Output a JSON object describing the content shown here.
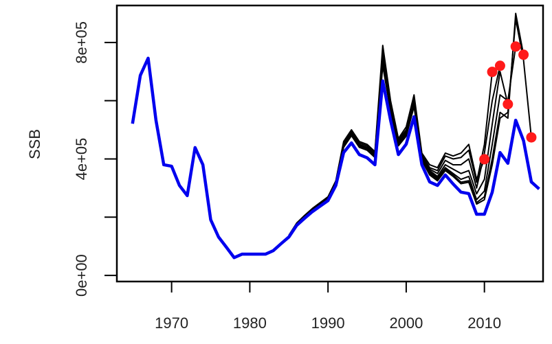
{
  "chart_data": {
    "type": "line",
    "y_label": "SSB",
    "x": [
      1965,
      1966,
      1967,
      1968,
      1969,
      1970,
      1971,
      1972,
      1973,
      1974,
      1975,
      1976,
      1977,
      1978,
      1979,
      1980,
      1981,
      1982,
      1983,
      1984,
      1985,
      1986,
      1987,
      1988,
      1989,
      1990,
      1991,
      1992,
      1993,
      1994,
      1995,
      1996,
      1997,
      1998,
      1999,
      2000,
      2001,
      2002,
      2003,
      2004,
      2005,
      2006,
      2007,
      2008,
      2009,
      2010,
      2011,
      2012,
      2013,
      2014,
      2015,
      2016,
      2017
    ],
    "series": [
      {
        "color": "#000000",
        "values": [
          null,
          null,
          null,
          null,
          null,
          null,
          null,
          null,
          null,
          null,
          null,
          null,
          null,
          null,
          null,
          null,
          null,
          null,
          null,
          null,
          138000,
          180000,
          206000,
          230000,
          250000,
          270000,
          325000,
          460000,
          500000,
          460000,
          450000,
          425000,
          790000,
          600000,
          470000,
          510000,
          620000,
          420000,
          380000,
          370000,
          420000,
          410000,
          420000,
          450000,
          330000,
          399000,
          null,
          null,
          null,
          null,
          null,
          null,
          null
        ]
      },
      {
        "color": "#000000",
        "values": [
          null,
          null,
          null,
          null,
          null,
          null,
          null,
          null,
          null,
          null,
          null,
          null,
          null,
          null,
          null,
          null,
          null,
          null,
          null,
          null,
          137000,
          178000,
          204000,
          228000,
          248000,
          268000,
          322000,
          455000,
          495000,
          455000,
          445000,
          420000,
          770000,
          590000,
          465000,
          500000,
          610000,
          415000,
          370000,
          360000,
          410000,
          400000,
          405000,
          430000,
          320000,
          450000,
          699000,
          null,
          null,
          null,
          null,
          null,
          null
        ]
      },
      {
        "color": "#000000",
        "values": [
          null,
          null,
          null,
          null,
          null,
          null,
          null,
          null,
          null,
          null,
          null,
          null,
          null,
          null,
          null,
          null,
          null,
          null,
          null,
          null,
          136000,
          177000,
          202000,
          226000,
          247000,
          267000,
          320000,
          450000,
          490000,
          450000,
          440000,
          415000,
          760000,
          585000,
          460000,
          495000,
          600000,
          410000,
          365000,
          350000,
          395000,
          380000,
          380000,
          400000,
          300000,
          420000,
          600000,
          720000,
          null,
          null,
          null,
          null,
          null
        ]
      },
      {
        "color": "#000000",
        "values": [
          null,
          null,
          null,
          null,
          null,
          null,
          null,
          null,
          null,
          null,
          null,
          null,
          null,
          null,
          null,
          null,
          null,
          null,
          null,
          null,
          136000,
          176000,
          201000,
          225000,
          246000,
          266000,
          319000,
          448000,
          488000,
          448000,
          438000,
          412000,
          750000,
          580000,
          455000,
          490000,
          595000,
          405000,
          360000,
          340000,
          380000,
          365000,
          350000,
          360000,
          280000,
          330000,
          520000,
          700000,
          588000,
          null,
          null,
          null,
          null
        ]
      },
      {
        "color": "#000000",
        "values": [
          null,
          null,
          null,
          null,
          null,
          null,
          null,
          null,
          null,
          null,
          null,
          null,
          null,
          null,
          null,
          null,
          null,
          null,
          null,
          null,
          135000,
          175000,
          200000,
          224000,
          245000,
          265000,
          318000,
          445000,
          485000,
          445000,
          435000,
          410000,
          740000,
          575000,
          450000,
          485000,
          590000,
          400000,
          355000,
          335000,
          370000,
          350000,
          330000,
          340000,
          260000,
          290000,
          450000,
          620000,
          600000,
          786000,
          null,
          null,
          null
        ]
      },
      {
        "color": "#000000",
        "values": [
          null,
          null,
          null,
          null,
          null,
          null,
          null,
          null,
          null,
          null,
          null,
          null,
          null,
          null,
          null,
          null,
          null,
          null,
          null,
          null,
          135000,
          175000,
          200000,
          224000,
          245000,
          264000,
          316000,
          442000,
          482000,
          442000,
          432000,
          408000,
          730000,
          570000,
          448000,
          482000,
          585000,
          398000,
          350000,
          330000,
          365000,
          345000,
          320000,
          325000,
          250000,
          270000,
          400000,
          560000,
          540000,
          900000,
          758000,
          null,
          null
        ]
      },
      {
        "color": "#000000",
        "values": [
          null,
          null,
          null,
          null,
          null,
          null,
          null,
          null,
          null,
          null,
          null,
          null,
          null,
          null,
          null,
          null,
          null,
          null,
          null,
          null,
          134000,
          174000,
          199000,
          223000,
          244000,
          263000,
          315000,
          440000,
          480000,
          440000,
          430000,
          405000,
          720000,
          565000,
          445000,
          478000,
          580000,
          395000,
          345000,
          325000,
          360000,
          340000,
          315000,
          320000,
          245000,
          260000,
          380000,
          540000,
          560000,
          880000,
          740000,
          474000,
          null
        ]
      },
      {
        "color": "#0000ee",
        "values": [
          521000,
          687000,
          746000,
          533000,
          380000,
          375000,
          309000,
          274000,
          439000,
          380000,
          191000,
          132000,
          97000,
          61000,
          73000,
          73000,
          73000,
          73000,
          85000,
          109000,
          132000,
          172000,
          196000,
          219000,
          238000,
          257000,
          309000,
          422000,
          455000,
          415000,
          404000,
          380000,
          668000,
          533000,
          415000,
          451000,
          545000,
          380000,
          321000,
          309000,
          345000,
          314000,
          286000,
          281000,
          210000,
          210000,
          286000,
          422000,
          385000,
          533000,
          463000,
          321000,
          297000
        ]
      }
    ],
    "points": {
      "color": "#ff1a1a",
      "x": [
        2010,
        2011,
        2012,
        2013,
        2014,
        2015,
        2016
      ],
      "values": [
        399000,
        699000,
        720000,
        588000,
        786000,
        758000,
        474000
      ]
    },
    "xlim": [
      1963,
      2017.5
    ],
    "ylim": [
      -21000,
      927000
    ],
    "xticks": [
      1970,
      1980,
      1990,
      2000,
      2010
    ],
    "yticks": [
      {
        "value": 0,
        "label": "0e+00"
      },
      {
        "value": 400000,
        "label": "4e+05"
      },
      {
        "value": 800000,
        "label": "8e+05"
      }
    ],
    "yticks_unlabeled": [
      200000,
      600000
    ]
  }
}
